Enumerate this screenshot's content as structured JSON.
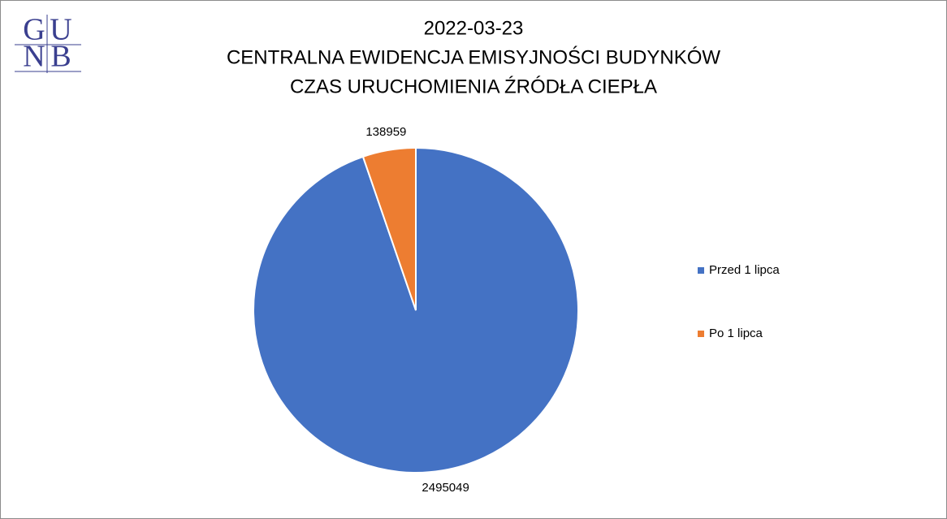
{
  "logo": {
    "letters": [
      "G",
      "U",
      "N",
      "B"
    ]
  },
  "chart_data": {
    "type": "pie",
    "title": [
      "2022-03-23",
      "CENTRALNA EWIDENCJA EMISYJNOŚCI BUDYNKÓW",
      "CZAS URUCHOMIENIA ŹRÓDŁA CIEPŁA"
    ],
    "categories": [
      "Przed 1 lipca",
      "Po 1 lipca"
    ],
    "values": [
      2495049,
      138959
    ],
    "colors": [
      "#4472c4",
      "#ed7d31"
    ],
    "legend": "right"
  }
}
